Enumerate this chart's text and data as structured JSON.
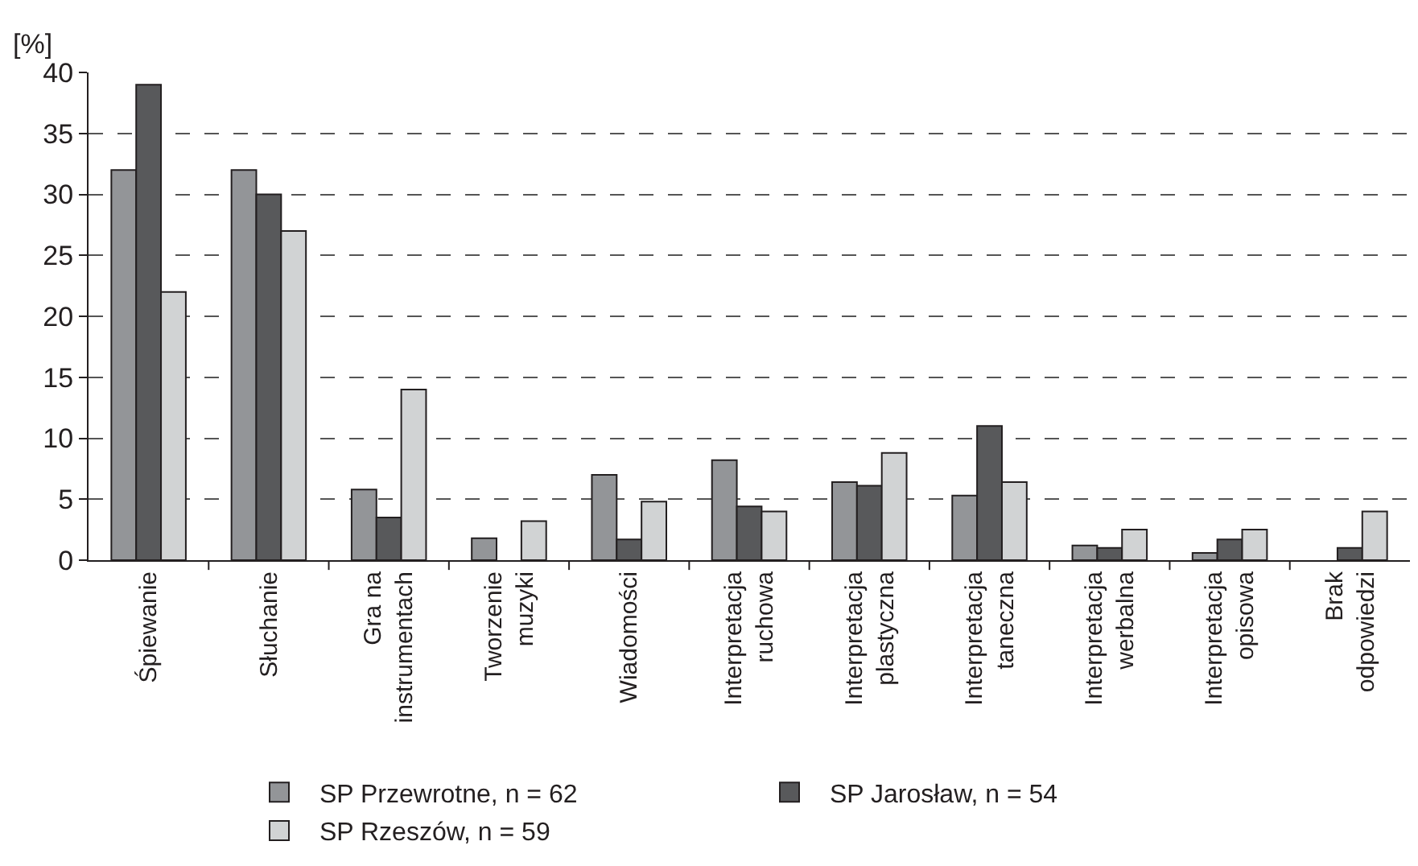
{
  "chart_data": {
    "type": "bar",
    "ylabel": "[%]",
    "categories": [
      "Śpiewanie",
      "Słuchanie",
      "Gra na\ninstrumentach",
      "Tworzenie\nmuzyki",
      "Wiadomości",
      "Interpretacja\nruchowa",
      "Interpretacja\nplastyczna",
      "Interpretacja\ntaneczna",
      "Interpretacja\nwerbalna",
      "Interpretacja\nopisowa",
      "Brak\nodpowiedzi"
    ],
    "series": [
      {
        "name": "SP Przewrotne, n = 62",
        "color": "#939598",
        "values": [
          32,
          32,
          5.8,
          1.8,
          7,
          8.2,
          6.4,
          5.3,
          1.2,
          0.6,
          null
        ]
      },
      {
        "name": "SP Jarosław, n = 54",
        "color": "#58595b",
        "values": [
          39,
          30,
          3.5,
          null,
          1.7,
          4.4,
          6.1,
          11,
          1,
          1.7,
          1
        ]
      },
      {
        "name": "SP Rzeszów, n = 59",
        "color": "#d1d3d4",
        "values": [
          22,
          27,
          14,
          3.2,
          4.8,
          4,
          8.8,
          6.4,
          2.5,
          2.5,
          4
        ]
      }
    ],
    "ylim": [
      0,
      40
    ],
    "yticks": [
      0,
      5,
      10,
      15,
      20,
      25,
      30,
      35,
      40
    ],
    "grid": "y",
    "legend": "bottom"
  }
}
